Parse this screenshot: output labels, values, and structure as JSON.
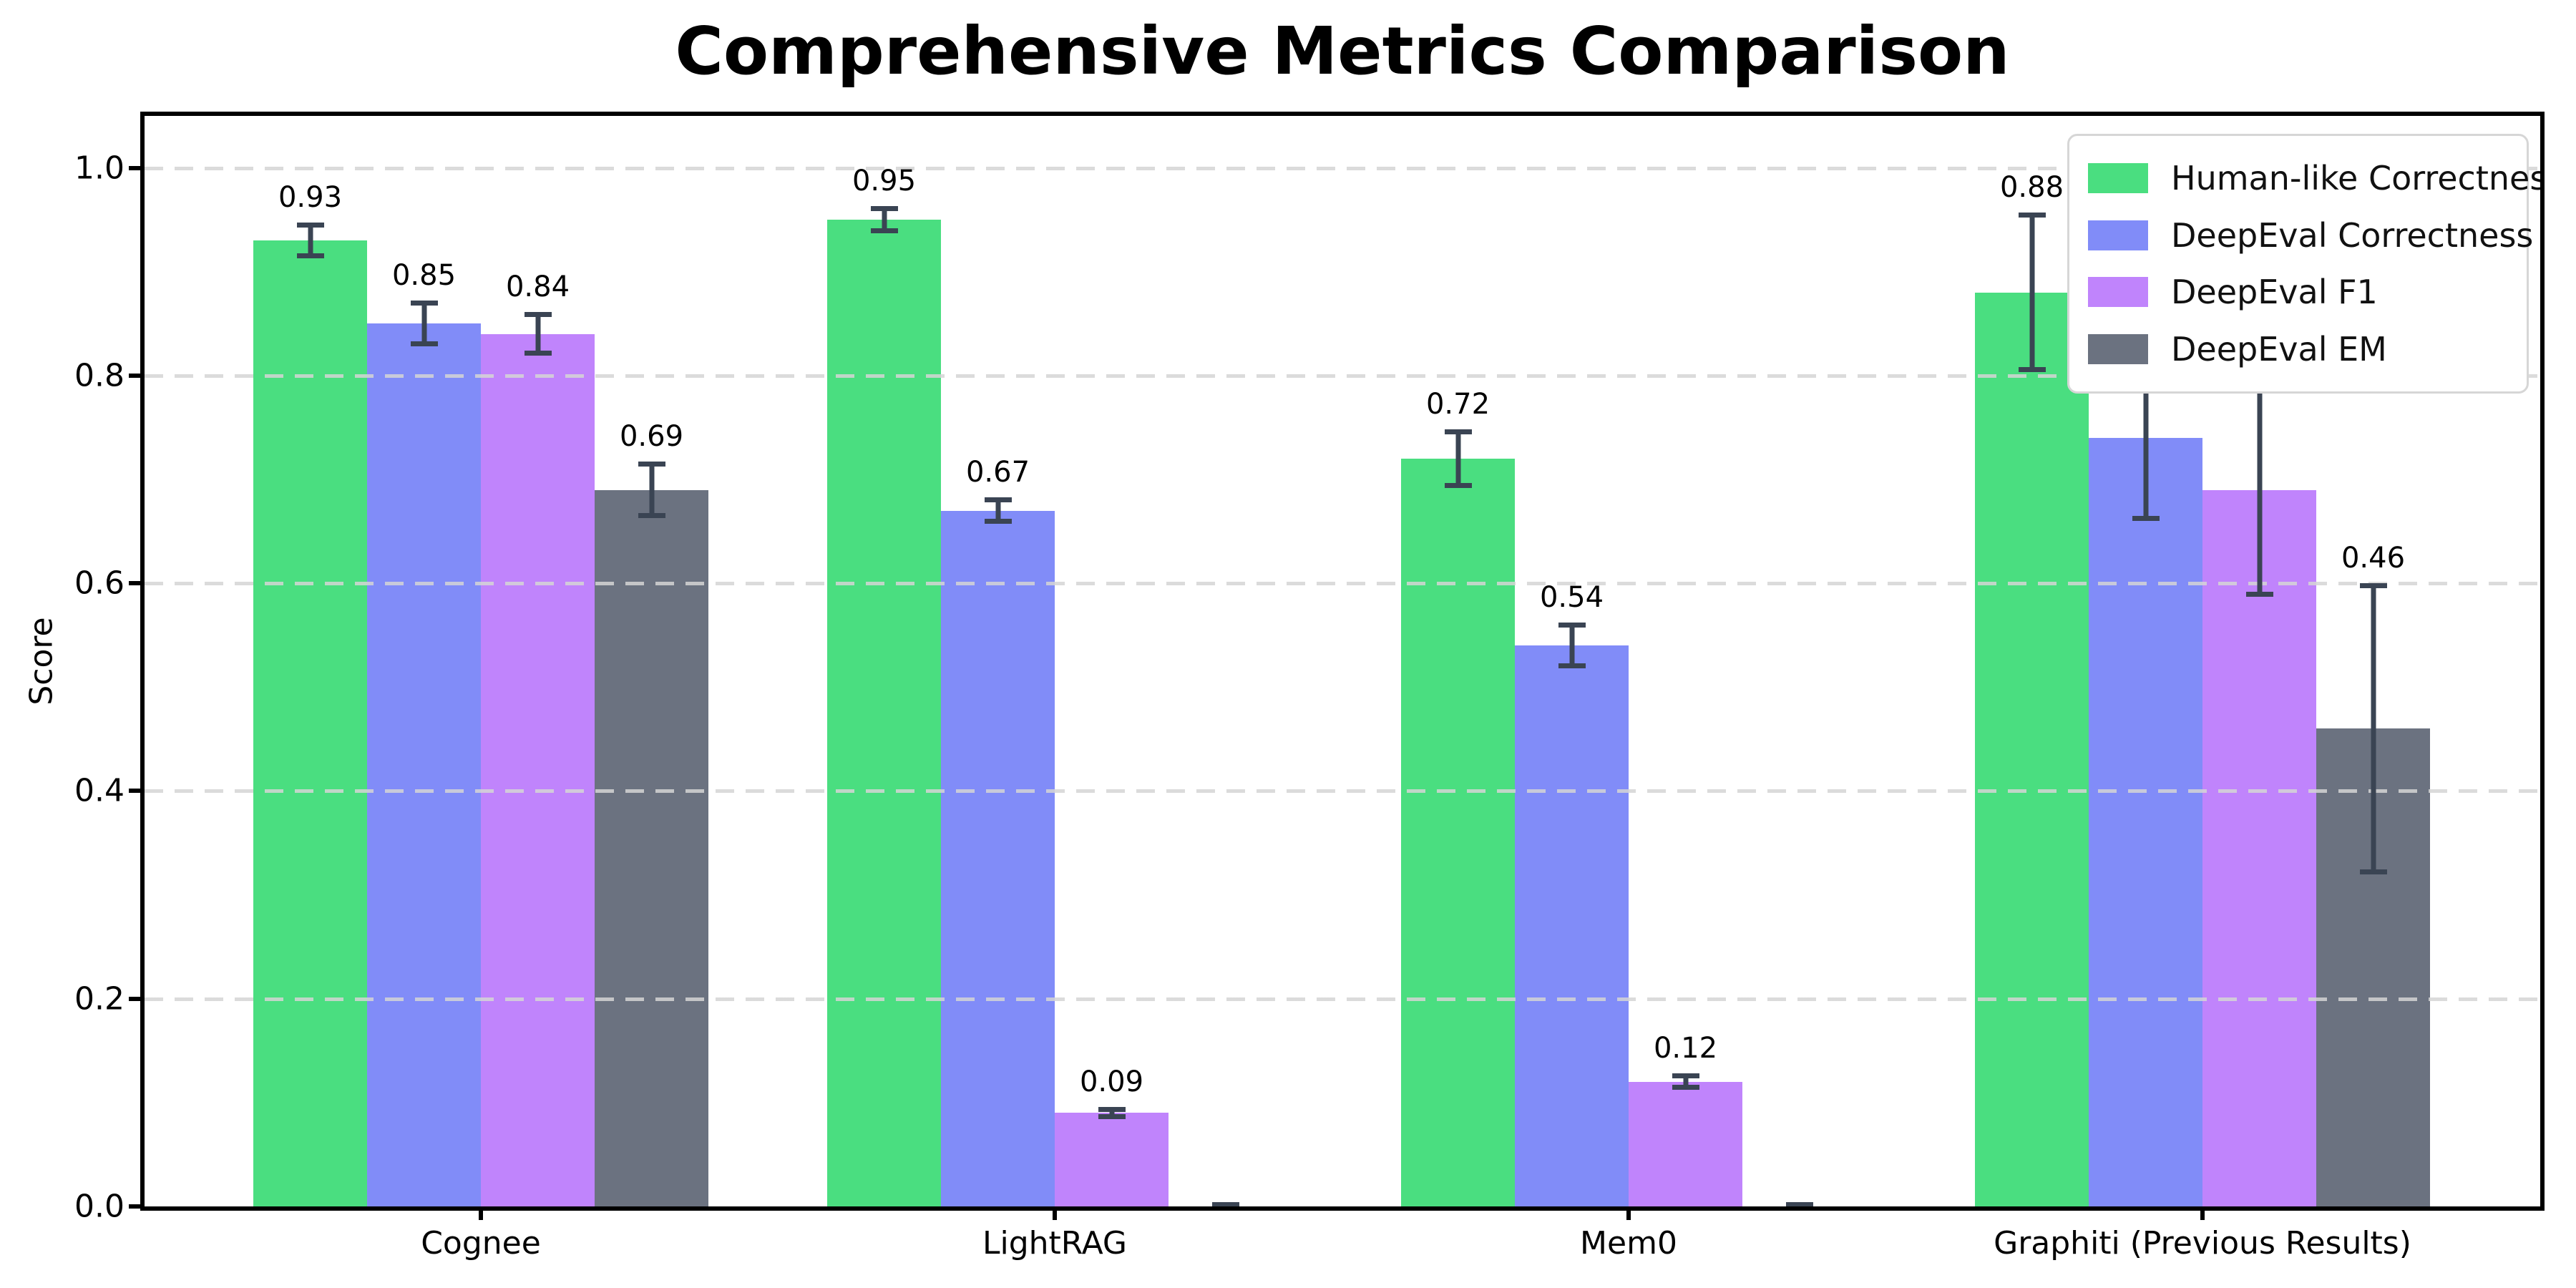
{
  "figure": {
    "title": "Comprehensive Metrics Comparison",
    "background_color": "#ffffff",
    "text_color": "#000000"
  },
  "chart_data": {
    "type": "bar",
    "title": "Comprehensive Metrics Comparison",
    "xlabel": "",
    "ylabel": "Score",
    "categories": [
      "Cognee",
      "LightRAG",
      "Mem0",
      "Graphiti (Previous Results)"
    ],
    "series": [
      {
        "name": "Human-like Correctness",
        "color": "#4ade80",
        "values": [
          0.93,
          0.95,
          0.72,
          0.88
        ],
        "errors": [
          0.017,
          0.013,
          0.028,
          0.077
        ]
      },
      {
        "name": "DeepEval Correctness",
        "color": "#818cf8",
        "values": [
          0.85,
          0.67,
          0.54,
          0.74
        ],
        "errors": [
          0.022,
          0.013,
          0.022,
          0.08
        ]
      },
      {
        "name": "DeepEval F1",
        "color": "#c084fc",
        "values": [
          0.84,
          0.09,
          0.12,
          0.69
        ],
        "errors": [
          0.021,
          0.006,
          0.008,
          0.103
        ]
      },
      {
        "name": "DeepEval EM",
        "color": "#6b7280",
        "values": [
          0.69,
          0.0,
          0.0,
          0.46
        ],
        "errors": [
          0.027,
          0.004,
          0.004,
          0.14
        ]
      }
    ],
    "bar_value_labels": [
      "0.93",
      "0.95",
      "0.72",
      "0.88",
      "0.85",
      "0.67",
      "0.54",
      "0.74",
      "0.84",
      "0.09",
      "0.12",
      "0.69",
      "0.69",
      "",
      "",
      "0.46"
    ],
    "value_label_format_decimals": 2,
    "value_label_hidden_below": 0.005,
    "ylim": [
      0,
      1.05
    ],
    "yticks": [
      "0.0",
      "0.2",
      "0.4",
      "0.6",
      "0.8",
      "1.0"
    ],
    "grid": {
      "axis": "y",
      "style": "dashed",
      "color": "#d5d5d5",
      "over_bars": true
    },
    "error_bar_color": "#3a4453",
    "legend_position": "upper right",
    "legend_entries": [
      "Human-like Correctness",
      "DeepEval Correctness",
      "DeepEval F1",
      "DeepEval EM"
    ]
  }
}
